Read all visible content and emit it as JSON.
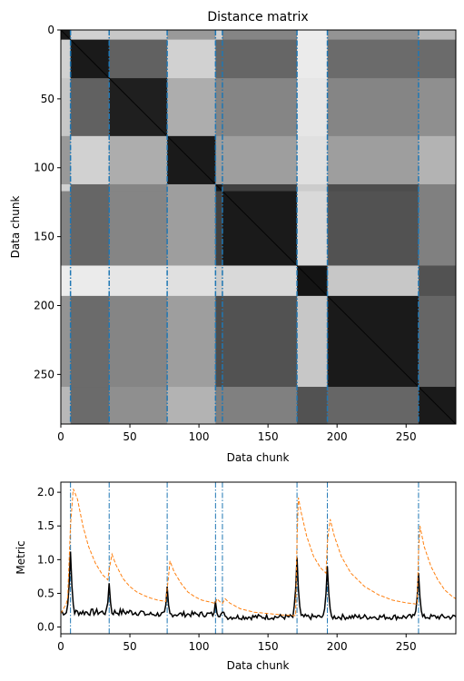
{
  "chart_data": [
    {
      "type": "heatmap",
      "title": "Distance matrix",
      "xlabel": "Data chunk",
      "ylabel": "Data chunk",
      "xlim": [
        0,
        286
      ],
      "ylim": [
        286,
        0
      ],
      "xticks": [
        0,
        50,
        100,
        150,
        200,
        250
      ],
      "yticks": [
        0,
        50,
        100,
        150,
        200,
        250
      ],
      "colormap": "gray",
      "segments": [
        0,
        7,
        35,
        77,
        112,
        117,
        171,
        193,
        259,
        286
      ],
      "block_gray_levels": [
        [
          0.1,
          0.82,
          0.78,
          0.6,
          0.82,
          0.52,
          0.93,
          0.58,
          0.72
        ],
        [
          0.82,
          0.1,
          0.38,
          0.82,
          0.4,
          0.4,
          0.92,
          0.42,
          0.42
        ],
        [
          0.78,
          0.38,
          0.12,
          0.68,
          0.52,
          0.52,
          0.9,
          0.52,
          0.56
        ],
        [
          0.6,
          0.82,
          0.68,
          0.1,
          0.62,
          0.62,
          0.88,
          0.62,
          0.7
        ],
        [
          0.82,
          0.4,
          0.52,
          0.62,
          0.1,
          0.25,
          0.8,
          0.3,
          0.5
        ],
        [
          0.52,
          0.4,
          0.52,
          0.62,
          0.25,
          0.1,
          0.85,
          0.32,
          0.5
        ],
        [
          0.93,
          0.92,
          0.9,
          0.88,
          0.8,
          0.85,
          0.08,
          0.78,
          0.32
        ],
        [
          0.58,
          0.42,
          0.52,
          0.62,
          0.3,
          0.32,
          0.78,
          0.1,
          0.4
        ],
        [
          0.72,
          0.42,
          0.56,
          0.7,
          0.5,
          0.5,
          0.32,
          0.4,
          0.1
        ]
      ],
      "change_points": [
        7,
        35,
        77,
        112,
        117,
        171,
        193,
        259
      ],
      "line_color": "#1f77b4"
    },
    {
      "type": "line",
      "title": "",
      "xlabel": "Data chunk",
      "ylabel": "Metric",
      "xlim": [
        0,
        286
      ],
      "ylim": [
        -0.1,
        2.15
      ],
      "xticks": [
        0,
        50,
        100,
        150,
        200,
        250
      ],
      "yticks": [
        0.0,
        0.5,
        1.0,
        1.5,
        2.0
      ],
      "ytick_labels": [
        "0.0",
        "0.5",
        "1.0",
        "1.5",
        "2.0"
      ],
      "change_points": [
        7,
        35,
        77,
        112,
        117,
        171,
        193,
        259
      ],
      "series": [
        {
          "color": "#000000",
          "style": "solid",
          "baseline": 0.18,
          "peaks": [
            [
              7,
              1.12
            ],
            [
              35,
              0.65
            ],
            [
              77,
              0.6
            ],
            [
              112,
              0.38
            ],
            [
              117,
              0.22
            ],
            [
              171,
              1.03
            ],
            [
              193,
              0.9
            ],
            [
              259,
              0.8
            ]
          ]
        },
        {
          "color": "#ff7f0e",
          "style": "dashed",
          "points": [
            [
              0,
              0.2
            ],
            [
              4,
              0.35
            ],
            [
              5,
              0.45
            ],
            [
              7,
              1.5
            ],
            [
              9,
              2.05
            ],
            [
              12,
              1.9
            ],
            [
              16,
              1.5
            ],
            [
              20,
              1.2
            ],
            [
              25,
              0.95
            ],
            [
              30,
              0.78
            ],
            [
              34,
              0.7
            ],
            [
              35,
              0.85
            ],
            [
              37,
              1.08
            ],
            [
              40,
              0.92
            ],
            [
              45,
              0.72
            ],
            [
              50,
              0.6
            ],
            [
              55,
              0.52
            ],
            [
              60,
              0.47
            ],
            [
              65,
              0.43
            ],
            [
              70,
              0.4
            ],
            [
              76,
              0.38
            ],
            [
              78,
              0.75
            ],
            [
              79,
              0.98
            ],
            [
              82,
              0.82
            ],
            [
              87,
              0.65
            ],
            [
              92,
              0.52
            ],
            [
              97,
              0.45
            ],
            [
              102,
              0.4
            ],
            [
              108,
              0.37
            ],
            [
              112,
              0.35
            ],
            [
              113,
              0.42
            ],
            [
              115,
              0.38
            ],
            [
              117,
              0.35
            ],
            [
              119,
              0.42
            ],
            [
              122,
              0.36
            ],
            [
              130,
              0.27
            ],
            [
              140,
              0.22
            ],
            [
              150,
              0.2
            ],
            [
              160,
              0.18
            ],
            [
              170,
              0.17
            ],
            [
              171,
              1.3
            ],
            [
              172,
              1.92
            ],
            [
              174,
              1.7
            ],
            [
              178,
              1.35
            ],
            [
              183,
              1.05
            ],
            [
              188,
              0.88
            ],
            [
              192,
              0.8
            ],
            [
              193,
              1.25
            ],
            [
              195,
              1.6
            ],
            [
              198,
              1.35
            ],
            [
              203,
              1.05
            ],
            [
              210,
              0.8
            ],
            [
              220,
              0.6
            ],
            [
              230,
              0.48
            ],
            [
              240,
              0.4
            ],
            [
              250,
              0.36
            ],
            [
              258,
              0.34
            ],
            [
              259,
              1.1
            ],
            [
              260,
              1.5
            ],
            [
              263,
              1.2
            ],
            [
              268,
              0.9
            ],
            [
              273,
              0.7
            ],
            [
              278,
              0.55
            ],
            [
              283,
              0.46
            ],
            [
              286,
              0.42
            ]
          ]
        }
      ]
    }
  ]
}
